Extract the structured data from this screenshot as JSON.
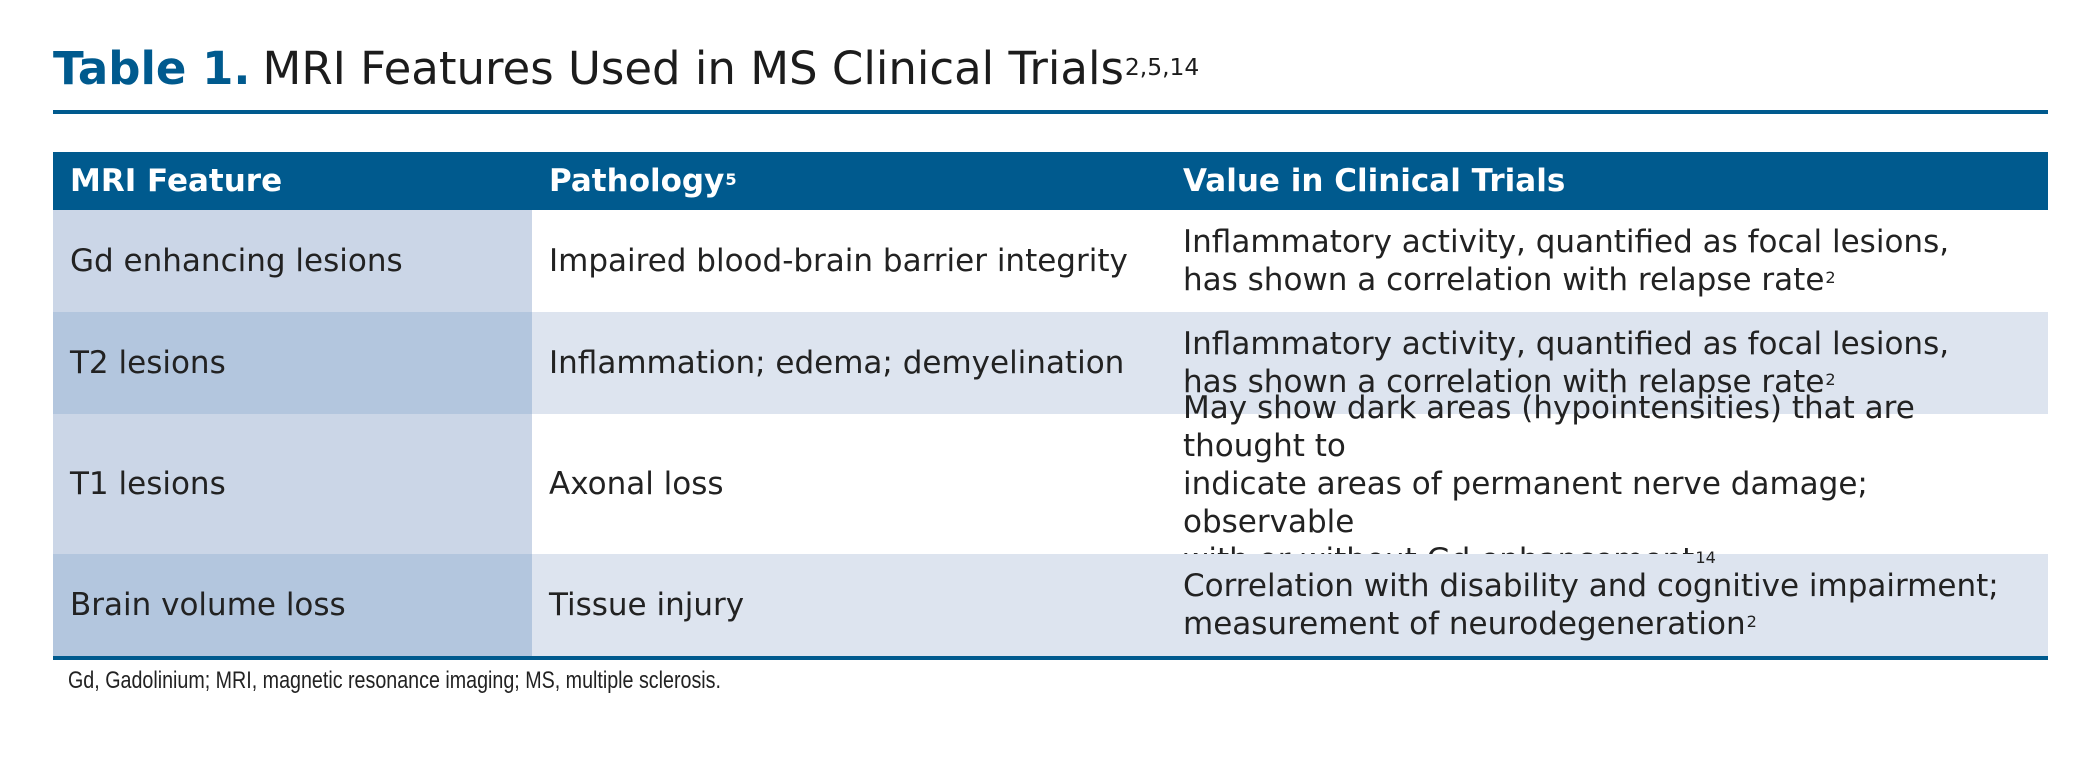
{
  "title": {
    "label": "Table 1.",
    "text": "MRI Features Used in MS Clinical Trials",
    "refs": "2,5,14"
  },
  "colors": {
    "accent": "#005a8e",
    "header_text": "#ffffff",
    "feature_col_light": "#cbd6e7",
    "feature_col_dark": "#b3c6de",
    "row_stripe": "#dde4ef"
  },
  "table": {
    "headers": [
      {
        "text": "MRI Feature",
        "ref": ""
      },
      {
        "text": "Pathology",
        "ref": "5"
      },
      {
        "text": "Value in Clinical Trials",
        "ref": ""
      }
    ],
    "rows": [
      {
        "feature": "Gd enhancing lesions",
        "pathology": "Impaired blood-brain barrier integrity",
        "value_lines": [
          "Inflammatory activity, quantified as focal lesions,",
          "has shown a correlation with relapse rate"
        ],
        "value_ref": "2"
      },
      {
        "feature": "T2 lesions",
        "pathology": "Inflammation; edema; demyelination",
        "value_lines": [
          "Inflammatory activity, quantified as focal lesions,",
          "has shown a correlation with relapse rate"
        ],
        "value_ref": "2"
      },
      {
        "feature": "T1 lesions",
        "pathology": "Axonal loss",
        "value_lines": [
          "May show dark areas (hypointensities) that are thought to",
          "indicate areas of permanent nerve damage; observable",
          "with or without Gd enhancement"
        ],
        "value_ref": "14"
      },
      {
        "feature": "Brain volume loss",
        "pathology": "Tissue injury",
        "value_lines": [
          "Correlation with disability and cognitive impairment;",
          "measurement of neurodegeneration"
        ],
        "value_ref": "2"
      }
    ]
  },
  "footnote": "Gd, Gadolinium; MRI, magnetic resonance imaging; MS, multiple sclerosis."
}
